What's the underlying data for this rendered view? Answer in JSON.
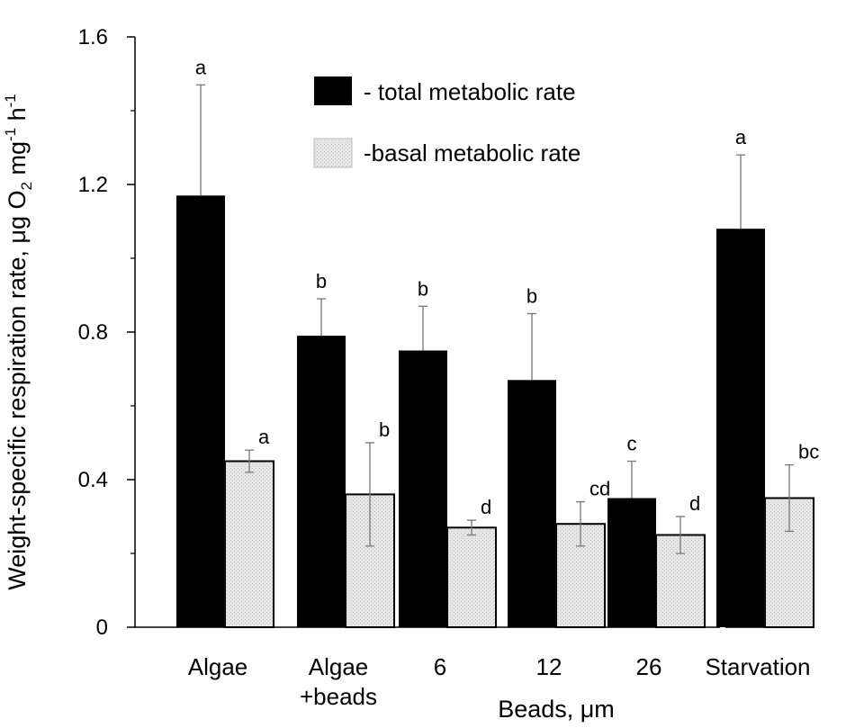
{
  "chart_data": {
    "type": "bar",
    "title": "",
    "ylabel": {
      "main": "Weight-specific respiration rate, ",
      "mu": "μ",
      "unit_g_O": "g O",
      "sub_2": "2",
      "unit_mg": " mg",
      "sup_minus1_a": "-1",
      "unit_h": " h",
      "sup_minus1_b": "-1"
    },
    "xlabel": "Beads, μm",
    "ylim": [
      0,
      1.6
    ],
    "yticks": [
      "0",
      "0.4",
      "0.8",
      "1.2",
      "1.6"
    ],
    "ytick_values": [
      0,
      0.4,
      0.8,
      1.2,
      1.6
    ],
    "categories": [
      {
        "lines": [
          "Algae"
        ]
      },
      {
        "lines": [
          "Algae",
          "+beads"
        ]
      },
      {
        "lines": [
          "6"
        ]
      },
      {
        "lines": [
          "12"
        ]
      },
      {
        "lines": [
          "26"
        ]
      },
      {
        "lines": [
          "Starvation"
        ]
      }
    ],
    "series": [
      {
        "name": "- total metabolic rate",
        "color": "#000000",
        "values": [
          1.17,
          0.79,
          0.75,
          0.67,
          0.35,
          1.08
        ],
        "errors": [
          0.3,
          0.1,
          0.12,
          0.18,
          0.1,
          0.2
        ],
        "labels": [
          "a",
          "b",
          "b",
          "b",
          "c",
          "a"
        ]
      },
      {
        "name": "-basal metabolic rate",
        "color": "#e4e4e4",
        "values": [
          0.45,
          0.36,
          0.27,
          0.28,
          0.25,
          0.35
        ],
        "errors": [
          0.03,
          0.14,
          0.02,
          0.06,
          0.05,
          0.09
        ],
        "labels": [
          "a",
          "b",
          "d",
          "cd",
          "d",
          "bc"
        ]
      }
    ],
    "legend_position": "top-center"
  }
}
